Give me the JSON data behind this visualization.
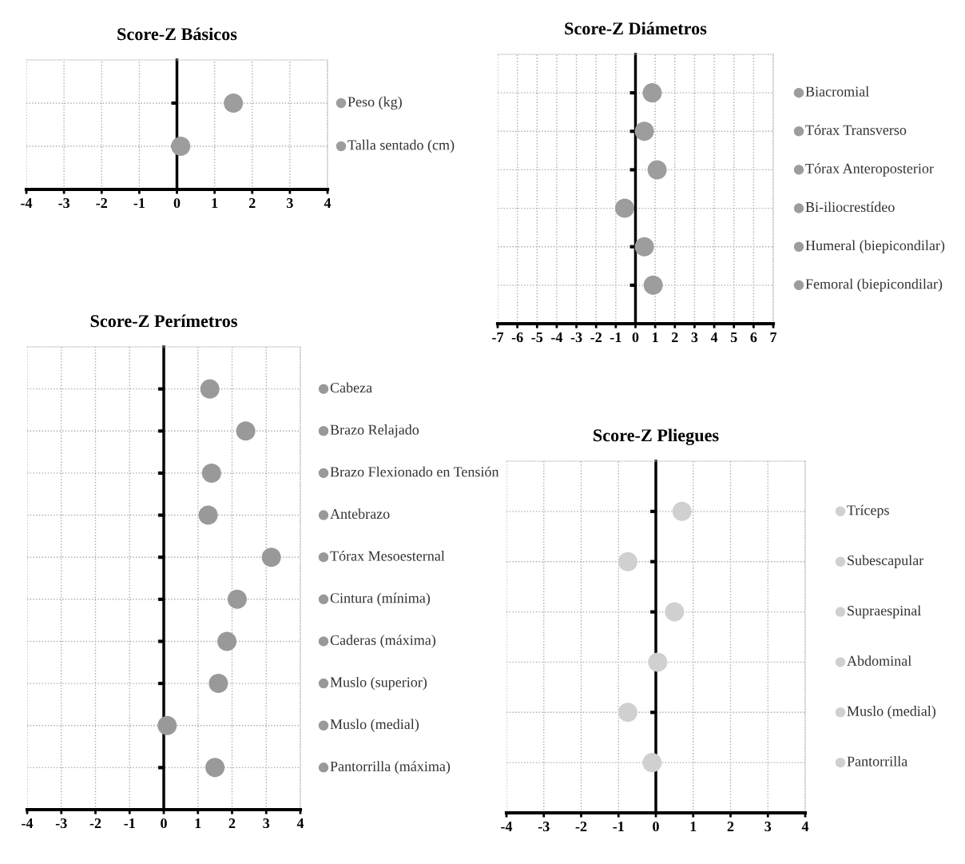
{
  "chart_data": [
    {
      "type": "scatter",
      "title": "Score-Z Básicos",
      "orientation": "horizontal",
      "categories": [
        "Peso (kg)",
        "Talla sentado (cm)"
      ],
      "values": [
        1.5,
        0.1
      ],
      "color": "#9d9d9d",
      "xlim": [
        -4,
        4
      ],
      "xticks": [
        -4,
        -3,
        -2,
        -1,
        0,
        1,
        2,
        3,
        4
      ],
      "grid": true,
      "marker": "circle"
    },
    {
      "type": "scatter",
      "title": "Score-Z Diámetros",
      "orientation": "horizontal",
      "categories": [
        "Biacromial",
        "Tórax Transverso",
        "Tórax Anteroposterior",
        "Bi-iliocrestídeo",
        "Humeral (biepicondilar)",
        "Femoral (biepicondilar)"
      ],
      "values": [
        0.85,
        0.45,
        1.1,
        -0.55,
        0.45,
        0.9
      ],
      "color": "#9d9d9d",
      "xlim": [
        -7,
        7
      ],
      "xticks": [
        -7,
        -6,
        -5,
        -4,
        -3,
        -2,
        -1,
        0,
        1,
        2,
        3,
        4,
        5,
        6,
        7
      ],
      "grid": true,
      "marker": "circle"
    },
    {
      "type": "scatter",
      "title": "Score-Z Perímetros",
      "orientation": "horizontal",
      "categories": [
        "Cabeza",
        "Brazo Relajado",
        "Brazo Flexionado en Tensión",
        "Antebrazo",
        "Tórax Mesoesternal",
        "Cintura (mínima)",
        "Caderas (máxima)",
        "Muslo (superior)",
        "Muslo (medial)",
        "Pantorrilla (máxima)"
      ],
      "values": [
        1.35,
        2.4,
        1.4,
        1.3,
        3.15,
        2.15,
        1.85,
        1.6,
        0.1,
        1.5
      ],
      "color": "#999999",
      "xlim": [
        -4,
        4
      ],
      "xticks": [
        -4,
        -3,
        -2,
        -1,
        0,
        1,
        2,
        3,
        4
      ],
      "grid": true,
      "marker": "circle"
    },
    {
      "type": "scatter",
      "title": "Score-Z Pliegues",
      "orientation": "horizontal",
      "categories": [
        "Tríceps",
        "Subescapular",
        "Supraespinal",
        "Abdominal",
        "Muslo (medial)",
        "Pantorrilla"
      ],
      "values": [
        0.7,
        -0.75,
        0.5,
        0.05,
        -0.75,
        -0.1
      ],
      "color": "#d0d0d0",
      "xlim": [
        -4,
        4
      ],
      "xticks": [
        -4,
        -3,
        -2,
        -1,
        0,
        1,
        2,
        3,
        4
      ],
      "grid": true,
      "marker": "circle"
    }
  ]
}
